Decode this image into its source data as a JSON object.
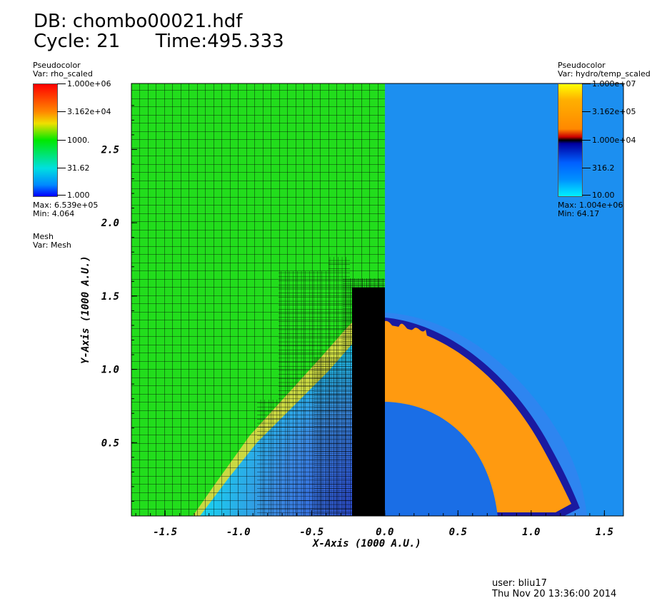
{
  "header": {
    "db_line": "DB: chombo00021.hdf",
    "cycle_line": "Cycle: 21      Time:495.333"
  },
  "legends": {
    "left": {
      "kind": "Pseudocolor",
      "var": "Var: rho_scaled",
      "ticks": [
        "1.000e+06",
        "3.162e+04",
        "1000.",
        "31.62",
        "1.000"
      ],
      "max": "Max:  6.539e+05",
      "min": "Min:  4.064"
    },
    "mesh": {
      "kind": "Mesh",
      "var": "Var: Mesh"
    },
    "right": {
      "kind": "Pseudocolor",
      "var": "Var: hydro/temp_scaled",
      "ticks": [
        "1.000e+07",
        "3.162e+05",
        "1.000e+04",
        "316.2",
        "10.00"
      ],
      "max": "Max:  1.004e+06",
      "min": "Min:  64.17"
    }
  },
  "chart_data": {
    "type": "heatmap",
    "xlabel": "X-Axis (1000 A.U.)",
    "ylabel": "Y-Axis (1000 A.U.)",
    "xlim": [
      -1.73,
      1.63
    ],
    "ylim": [
      0.0,
      2.95
    ],
    "xticks": [
      "-1.5",
      "-1.0",
      "-0.5",
      "0.0",
      "0.5",
      "1.0",
      "1.5"
    ],
    "xtick_values": [
      -1.5,
      -1.0,
      -0.5,
      0.0,
      0.5,
      1.0,
      1.5
    ],
    "yticks": [
      "0.5",
      "1.0",
      "1.5",
      "2.0",
      "2.5"
    ],
    "ytick_values": [
      0.5,
      1.0,
      1.5,
      2.0,
      2.5
    ],
    "left_panel": "rho_scaled with AMR mesh overlay (x < 0)",
    "right_panel": "hydro/temp_scaled (x > 0)",
    "colors": {
      "rho_background": "#22dd1c",
      "rho_low": "#18d4f0",
      "rho_band": "#e8d84a",
      "temp_background": "#1c8ff0",
      "temp_shell": "#ff9a10",
      "temp_inner": "#1a6ee6",
      "temp_edge": "#1a1aa0"
    }
  },
  "footer": {
    "user": "user: bliu17",
    "date": "Thu Nov 20 13:36:00 2014"
  }
}
